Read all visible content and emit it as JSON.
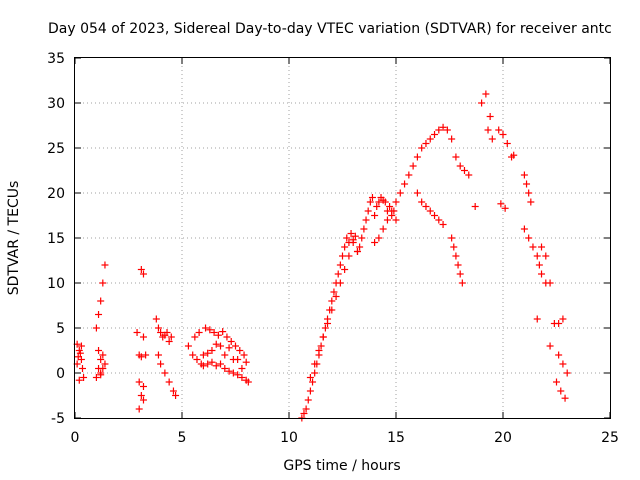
{
  "chart_data": {
    "type": "scatter",
    "title": "Day 054 of 2023, Sidereal Day-to-day VTEC variation (SDTVAR) for receiver antc",
    "xlabel": "GPS time / hours",
    "ylabel": "SDTVAR / TECUs",
    "xlim": [
      0,
      25
    ],
    "ylim": [
      -5,
      35
    ],
    "xticks": [
      "0",
      "5",
      "10",
      "15",
      "20",
      "25"
    ],
    "yticks": [
      "-5",
      "0",
      "5",
      "10",
      "15",
      "20",
      "25",
      "30",
      "35"
    ],
    "grid": true,
    "marker": "plus",
    "color": "#ff0000",
    "series": [
      {
        "name": "SDTVAR",
        "x": [
          0.1,
          0.2,
          0.3,
          0.4,
          0.15,
          0.25,
          0.35,
          0.1,
          0.3,
          0.2,
          1.0,
          1.1,
          1.2,
          1.3,
          1.4,
          1.1,
          1.2,
          1.3,
          1.0,
          1.2,
          1.4,
          1.1,
          1.3,
          1.2,
          2.9,
          3.0,
          3.0,
          3.1,
          3.1,
          3.2,
          3.2,
          3.3,
          3.0,
          3.1,
          3.2,
          3.2,
          3.8,
          3.9,
          4.0,
          4.1,
          4.2,
          4.3,
          4.4,
          4.5,
          3.9,
          4.0,
          4.2,
          4.4,
          4.6,
          4.7,
          5.3,
          5.5,
          5.7,
          5.9,
          6.0,
          6.2,
          6.4,
          6.6,
          6.8,
          7.0,
          7.2,
          7.4,
          7.6,
          7.8,
          8.0,
          8.1,
          5.6,
          5.8,
          6.1,
          6.3,
          6.5,
          6.7,
          6.9,
          7.1,
          7.3,
          7.5,
          7.7,
          7.9,
          6.0,
          6.4,
          6.8,
          7.2,
          7.6,
          8.0,
          6.2,
          6.6,
          7.0,
          7.4,
          7.8,
          10.6,
          10.7,
          10.8,
          10.9,
          11.0,
          11.1,
          11.2,
          11.3,
          11.4,
          11.5,
          11.6,
          11.7,
          11.8,
          11.9,
          12.0,
          12.1,
          12.2,
          12.3,
          12.4,
          12.5,
          12.6,
          12.7,
          12.8,
          12.9,
          13.0,
          13.1,
          13.2,
          13.3,
          13.4,
          11.0,
          11.2,
          11.4,
          11.6,
          11.8,
          12.0,
          12.2,
          12.4,
          12.6,
          12.8,
          13.0,
          13.2,
          13.5,
          13.6,
          13.7,
          13.8,
          13.9,
          14.0,
          14.1,
          14.2,
          14.3,
          14.4,
          14.5,
          14.6,
          14.7,
          14.8,
          14.9,
          15.0,
          14.0,
          14.2,
          14.4,
          14.6,
          14.8,
          15.0,
          15.2,
          15.4,
          15.6,
          15.8,
          16.0,
          16.2,
          16.4,
          16.6,
          16.8,
          17.0,
          17.2,
          17.4,
          17.6,
          17.8,
          18.0,
          18.2,
          18.4,
          16.0,
          16.2,
          16.4,
          16.6,
          16.8,
          17.0,
          17.2,
          17.6,
          17.7,
          17.8,
          17.9,
          18.0,
          18.1,
          18.7,
          19.0,
          19.2,
          19.4,
          19.3,
          19.5,
          19.8,
          20.0,
          20.2,
          20.4,
          20.5,
          19.9,
          20.1,
          21.0,
          21.1,
          21.2,
          21.3,
          21.0,
          21.2,
          21.4,
          21.6,
          21.7,
          21.8,
          22.0,
          21.6,
          22.2,
          21.8,
          22.0,
          22.2,
          22.4,
          22.6,
          22.8,
          23.0,
          22.5,
          22.7,
          22.9,
          22.8,
          22.6
        ],
        "y": [
          1.0,
          2.5,
          3.0,
          -0.5,
          1.8,
          2.2,
          0.5,
          3.2,
          1.5,
          -0.8,
          5.0,
          6.5,
          8.0,
          10.0,
          12.0,
          0.5,
          1.5,
          2.0,
          -0.5,
          0.0,
          1.0,
          2.5,
          0.5,
          -0.2,
          4.5,
          2.0,
          -1.0,
          1.8,
          11.5,
          11.0,
          4.0,
          2.0,
          -4.0,
          -2.5,
          -3.0,
          -1.5,
          6.0,
          5.0,
          4.5,
          4.0,
          4.2,
          4.5,
          3.5,
          4.0,
          2.0,
          1.0,
          0.0,
          -1.0,
          -2.0,
          -2.5,
          3.0,
          2.0,
          1.5,
          1.0,
          0.8,
          1.0,
          1.2,
          0.8,
          1.0,
          0.5,
          0.2,
          0.0,
          -0.2,
          -0.5,
          -0.8,
          -1.0,
          4.0,
          4.5,
          5.0,
          4.8,
          4.5,
          4.2,
          4.6,
          4.0,
          3.5,
          3.0,
          2.5,
          2.0,
          2.0,
          2.5,
          3.0,
          2.8,
          1.5,
          1.2,
          2.2,
          3.2,
          2.0,
          1.5,
          0.5,
          -5.0,
          -4.5,
          -4.0,
          -3.0,
          -2.0,
          -1.0,
          0.0,
          1.0,
          2.0,
          3.0,
          4.0,
          5.0,
          6.0,
          7.0,
          8.0,
          9.0,
          10.0,
          11.0,
          12.0,
          13.0,
          14.0,
          15.0,
          14.5,
          15.5,
          14.8,
          15.2,
          13.5,
          14.0,
          15.0,
          -0.5,
          1.0,
          2.5,
          4.0,
          5.5,
          7.0,
          8.5,
          10.0,
          11.5,
          13.0,
          14.5,
          13.5,
          16.0,
          17.0,
          18.0,
          19.0,
          19.5,
          17.5,
          18.5,
          19.0,
          19.5,
          19.2,
          19.0,
          18.0,
          18.5,
          17.5,
          18.0,
          17.0,
          14.5,
          15.0,
          16.0,
          17.0,
          18.0,
          19.0,
          20.0,
          21.0,
          22.0,
          23.0,
          24.0,
          25.0,
          25.5,
          26.0,
          26.5,
          27.0,
          27.3,
          27.0,
          26.0,
          24.0,
          23.0,
          22.5,
          22.0,
          20.0,
          19.0,
          18.5,
          18.0,
          17.5,
          17.0,
          16.5,
          15.0,
          14.0,
          13.0,
          12.0,
          11.0,
          10.0,
          18.5,
          30.0,
          31.0,
          28.5,
          27.0,
          26.0,
          27.0,
          26.5,
          25.5,
          24.0,
          24.2,
          18.8,
          18.3,
          22.0,
          21.0,
          20.0,
          19.0,
          16.0,
          15.0,
          14.0,
          13.0,
          12.0,
          11.0,
          10.0,
          6.0,
          3.0,
          14.0,
          13.0,
          10.0,
          5.5,
          2.0,
          1.0,
          0.0,
          -1.0,
          -2.0,
          -2.8,
          6.0,
          5.5
        ]
      }
    ]
  }
}
